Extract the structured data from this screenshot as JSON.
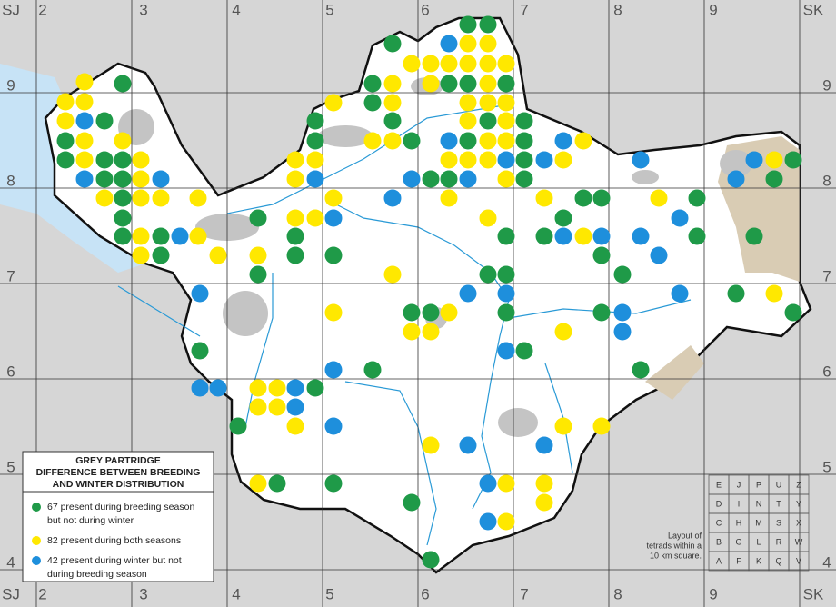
{
  "grid_labels": {
    "top": [
      "SJ",
      "2",
      "3",
      "4",
      "5",
      "6",
      "7",
      "8",
      "9",
      "SK"
    ],
    "right": [
      "9",
      "8",
      "7",
      "6",
      "5",
      "4"
    ]
  },
  "legend": {
    "title": [
      "GREY PARTRIDGE",
      "DIFFERENCE BETWEEN BREEDING",
      "AND WINTER DISTRIBUTION"
    ],
    "items": [
      {
        "color": "#1f9a48",
        "label": [
          "67 present during breeding season",
          "but not during winter"
        ]
      },
      {
        "color": "#ffe800",
        "label": [
          "82 present during both seasons"
        ]
      },
      {
        "color": "#1e8fdc",
        "label": [
          "42 present during winter but not",
          "during breeding season"
        ]
      }
    ]
  },
  "tetrads": {
    "rows": [
      [
        "E",
        "J",
        "P",
        "U",
        "Z"
      ],
      [
        "D",
        "I",
        "N",
        "T",
        "Y"
      ],
      [
        "C",
        "H",
        "M",
        "S",
        "X"
      ],
      [
        "B",
        "G",
        "L",
        "R",
        "W"
      ],
      [
        "A",
        "F",
        "K",
        "Q",
        "V"
      ]
    ],
    "caption": [
      "Layout of",
      "tetrads within a",
      "10 km square."
    ]
  }
}
